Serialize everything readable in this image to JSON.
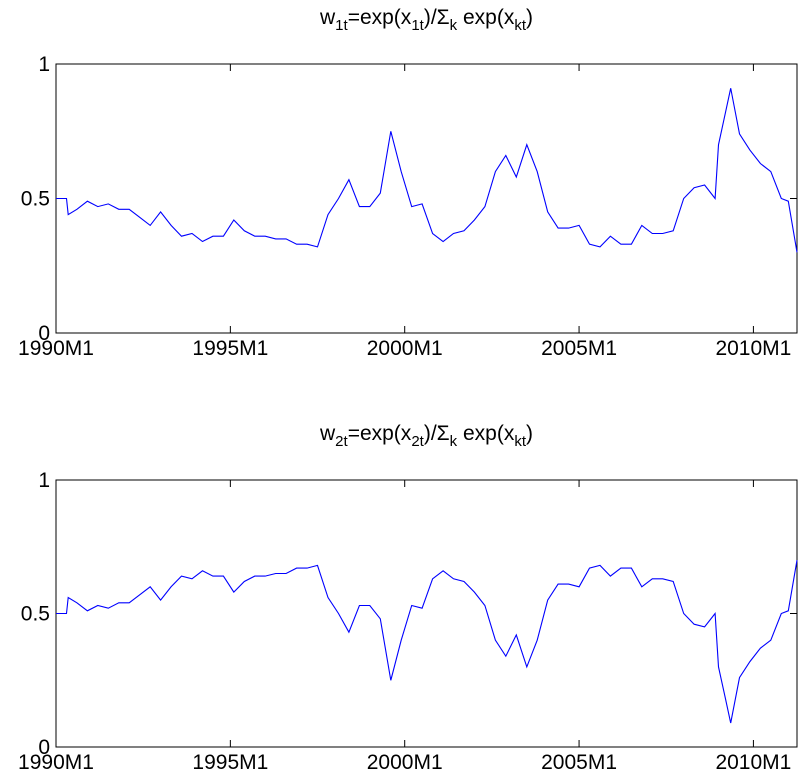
{
  "chart_data": [
    {
      "type": "line",
      "title": "w1t=exp(x1t)/Σk exp(xkt)",
      "title_parts": [
        {
          "t": "w",
          "sub": false
        },
        {
          "t": "1t",
          "sub": true
        },
        {
          "t": "=exp(x",
          "sub": false
        },
        {
          "t": "1t",
          "sub": true
        },
        {
          "t": ")/Σ",
          "sub": false
        },
        {
          "t": "k",
          "sub": true
        },
        {
          "t": " exp(x",
          "sub": false
        },
        {
          "t": "kt",
          "sub": true
        },
        {
          "t": ")",
          "sub": false
        }
      ],
      "xlim": [
        1990.0,
        2011.25
      ],
      "ylim": [
        0,
        1
      ],
      "xticks": [
        1990,
        1995,
        2000,
        2005,
        2010
      ],
      "xtick_labels": [
        "1990M1",
        "1995M1",
        "2000M1",
        "2005M1",
        "2010M1"
      ],
      "yticks": [
        0,
        0.5,
        1
      ],
      "ytick_labels": [
        "0",
        "0.5",
        "1"
      ],
      "line_color": "#0000ff",
      "series": [
        {
          "x": [
            1990.0,
            1990.3,
            1990.35,
            1990.6,
            1990.9,
            1991.2,
            1991.5,
            1991.8,
            1992.1,
            1992.4,
            1992.7,
            1993.0,
            1993.3,
            1993.6,
            1993.9,
            1994.2,
            1994.5,
            1994.8,
            1995.1,
            1995.4,
            1995.7,
            1996.0,
            1996.3,
            1996.6,
            1996.9,
            1997.2,
            1997.5,
            1997.8,
            1998.1,
            1998.4,
            1998.7,
            1999.0,
            1999.3,
            1999.6,
            1999.9,
            2000.2,
            2000.5,
            2000.8,
            2001.1,
            2001.4,
            2001.7,
            2002.0,
            2002.3,
            2002.6,
            2002.9,
            2003.2,
            2003.5,
            2003.8,
            2004.1,
            2004.4,
            2004.7,
            2005.0,
            2005.3,
            2005.6,
            2005.9,
            2006.2,
            2006.5,
            2006.8,
            2007.1,
            2007.4,
            2007.7,
            2008.0,
            2008.3,
            2008.6,
            2008.9,
            2009.0,
            2009.2,
            2009.35,
            2009.6,
            2009.9,
            2010.2,
            2010.5,
            2010.8,
            2011.0,
            2011.25
          ],
          "y": [
            0.5,
            0.5,
            0.44,
            0.46,
            0.49,
            0.47,
            0.48,
            0.46,
            0.46,
            0.43,
            0.4,
            0.45,
            0.4,
            0.36,
            0.37,
            0.34,
            0.36,
            0.36,
            0.42,
            0.38,
            0.36,
            0.36,
            0.35,
            0.35,
            0.33,
            0.33,
            0.32,
            0.44,
            0.5,
            0.57,
            0.47,
            0.47,
            0.52,
            0.75,
            0.6,
            0.47,
            0.48,
            0.37,
            0.34,
            0.37,
            0.38,
            0.42,
            0.47,
            0.6,
            0.66,
            0.58,
            0.7,
            0.6,
            0.45,
            0.39,
            0.39,
            0.4,
            0.33,
            0.32,
            0.36,
            0.33,
            0.33,
            0.4,
            0.37,
            0.37,
            0.38,
            0.5,
            0.54,
            0.55,
            0.5,
            0.7,
            0.82,
            0.91,
            0.74,
            0.68,
            0.63,
            0.6,
            0.5,
            0.49,
            0.3
          ]
        }
      ]
    },
    {
      "type": "line",
      "title": "w2t=exp(x2t)/Σk exp(xkt)",
      "title_parts": [
        {
          "t": "w",
          "sub": false
        },
        {
          "t": "2t",
          "sub": true
        },
        {
          "t": "=exp(x",
          "sub": false
        },
        {
          "t": "2t",
          "sub": true
        },
        {
          "t": ")/Σ",
          "sub": false
        },
        {
          "t": "k",
          "sub": true
        },
        {
          "t": " exp(x",
          "sub": false
        },
        {
          "t": "kt",
          "sub": true
        },
        {
          "t": ")",
          "sub": false
        }
      ],
      "xlim": [
        1990.0,
        2011.25
      ],
      "ylim": [
        0,
        1
      ],
      "xticks": [
        1990,
        1995,
        2000,
        2005,
        2010
      ],
      "xtick_labels": [
        "1990M1",
        "1995M1",
        "2000M1",
        "2005M1",
        "2010M1"
      ],
      "yticks": [
        0,
        0.5,
        1
      ],
      "ytick_labels": [
        "0",
        "0.5",
        "1"
      ],
      "line_color": "#0000ff",
      "series": [
        {
          "x": [
            1990.0,
            1990.3,
            1990.35,
            1990.6,
            1990.9,
            1991.2,
            1991.5,
            1991.8,
            1992.1,
            1992.4,
            1992.7,
            1993.0,
            1993.3,
            1993.6,
            1993.9,
            1994.2,
            1994.5,
            1994.8,
            1995.1,
            1995.4,
            1995.7,
            1996.0,
            1996.3,
            1996.6,
            1996.9,
            1997.2,
            1997.5,
            1997.8,
            1998.1,
            1998.4,
            1998.7,
            1999.0,
            1999.3,
            1999.6,
            1999.9,
            2000.2,
            2000.5,
            2000.8,
            2001.1,
            2001.4,
            2001.7,
            2002.0,
            2002.3,
            2002.6,
            2002.9,
            2003.2,
            2003.5,
            2003.8,
            2004.1,
            2004.4,
            2004.7,
            2005.0,
            2005.3,
            2005.6,
            2005.9,
            2006.2,
            2006.5,
            2006.8,
            2007.1,
            2007.4,
            2007.7,
            2008.0,
            2008.3,
            2008.6,
            2008.9,
            2009.0,
            2009.2,
            2009.35,
            2009.6,
            2009.9,
            2010.2,
            2010.5,
            2010.8,
            2011.0,
            2011.25
          ],
          "y": [
            0.5,
            0.5,
            0.56,
            0.54,
            0.51,
            0.53,
            0.52,
            0.54,
            0.54,
            0.57,
            0.6,
            0.55,
            0.6,
            0.64,
            0.63,
            0.66,
            0.64,
            0.64,
            0.58,
            0.62,
            0.64,
            0.64,
            0.65,
            0.65,
            0.67,
            0.67,
            0.68,
            0.56,
            0.5,
            0.43,
            0.53,
            0.53,
            0.48,
            0.25,
            0.4,
            0.53,
            0.52,
            0.63,
            0.66,
            0.63,
            0.62,
            0.58,
            0.53,
            0.4,
            0.34,
            0.42,
            0.3,
            0.4,
            0.55,
            0.61,
            0.61,
            0.6,
            0.67,
            0.68,
            0.64,
            0.67,
            0.67,
            0.6,
            0.63,
            0.63,
            0.62,
            0.5,
            0.46,
            0.45,
            0.5,
            0.3,
            0.18,
            0.09,
            0.26,
            0.32,
            0.37,
            0.4,
            0.5,
            0.51,
            0.7
          ]
        }
      ]
    }
  ]
}
